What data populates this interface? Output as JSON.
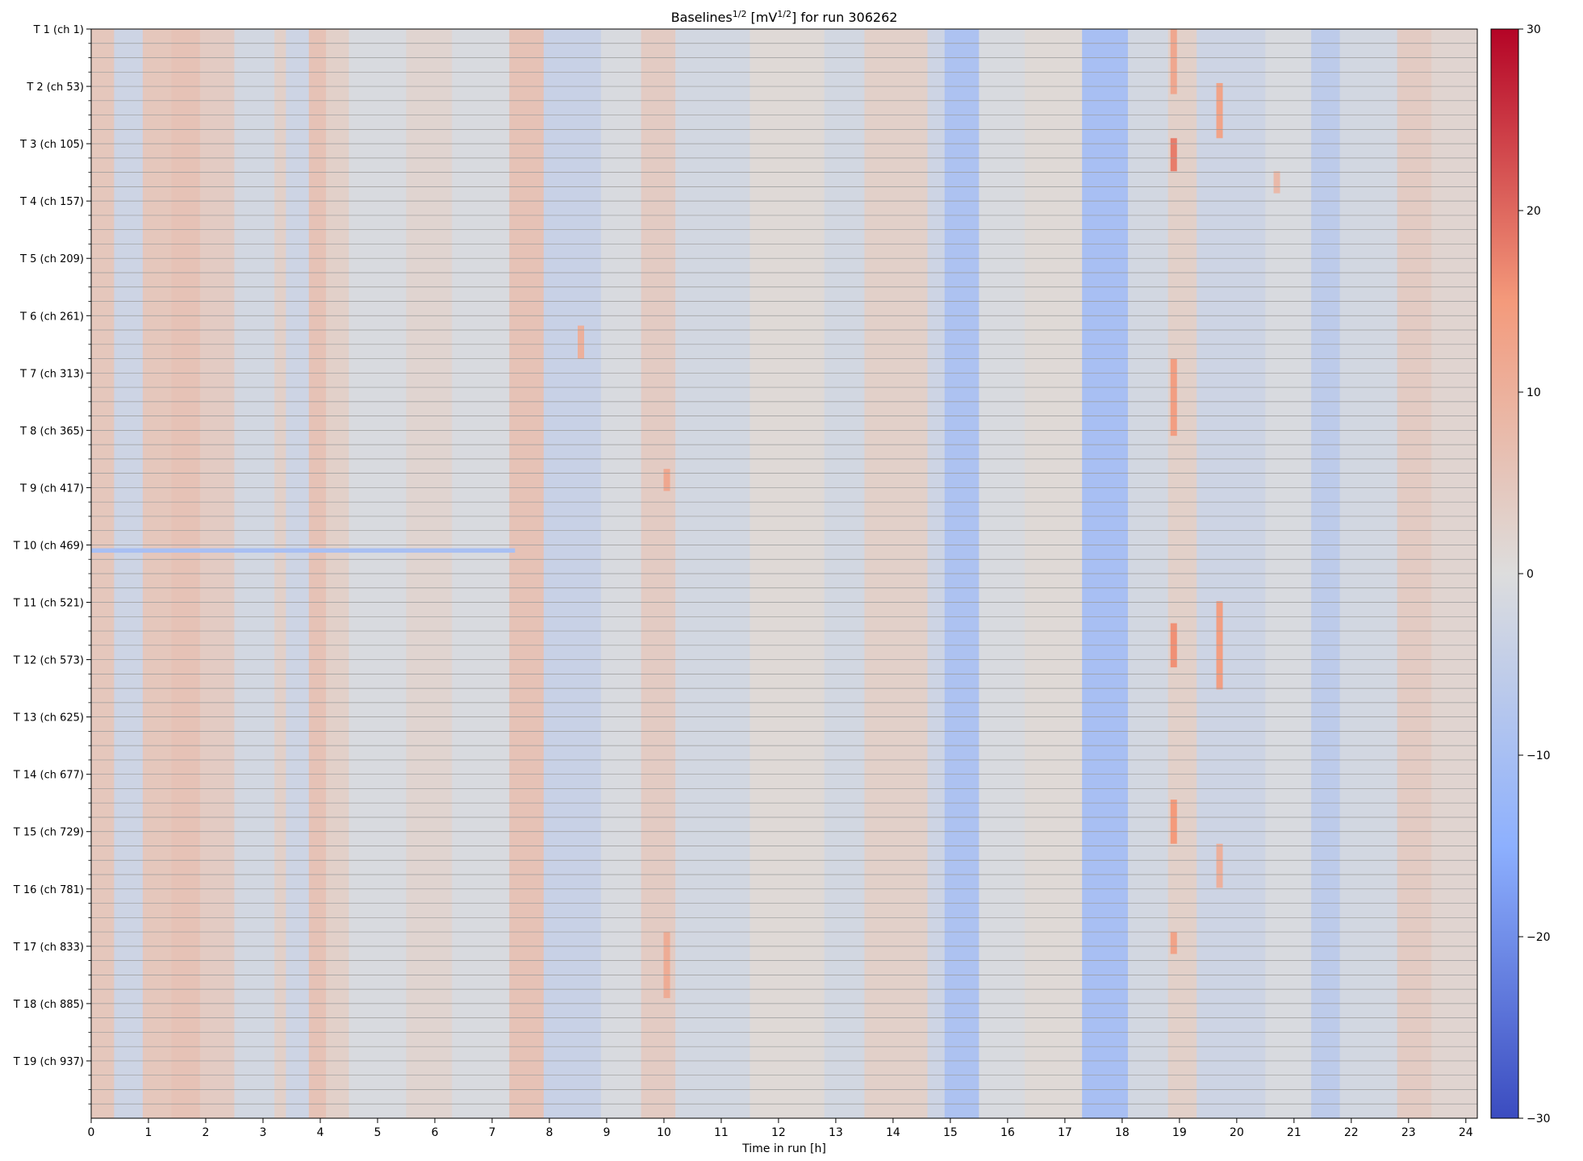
{
  "chart_data": {
    "type": "heatmap",
    "title": "Baselines¹ᐟ² [mV¹ᐟ²] for run 306262",
    "title_parts": {
      "pre": "Baselines",
      "sup1": "1/2",
      "mid": " [mV",
      "sup2": "1/2",
      "post": "] for run 306262"
    },
    "xlabel": "Time in run [h]",
    "ylabel": "",
    "x_ticks": [
      0,
      1,
      2,
      3,
      4,
      5,
      6,
      7,
      8,
      9,
      10,
      11,
      12,
      13,
      14,
      15,
      16,
      17,
      18,
      19,
      20,
      21,
      22,
      23,
      24
    ],
    "xlim": [
      0,
      24.2
    ],
    "channels": 988,
    "channel_group_size": 52,
    "minor_ticks_per_group": 4,
    "y_tick_labels": [
      "T 1 (ch 1)",
      "T 2 (ch 53)",
      "T 3 (ch 105)",
      "T 4 (ch 157)",
      "T 5 (ch 209)",
      "T 6 (ch 261)",
      "T 7 (ch 313)",
      "T 8 (ch 365)",
      "T 9 (ch 417)",
      "T 10 (ch 469)",
      "T 11 (ch 521)",
      "T 12 (ch 573)",
      "T 13 (ch 625)",
      "T 14 (ch 677)",
      "T 15 (ch 729)",
      "T 16 (ch 781)",
      "T 17 (ch 833)",
      "T 18 (ch 885)",
      "T 19 (ch 937)"
    ],
    "colorbar": {
      "cmap": "coolwarm",
      "vmin": -30,
      "vmax": 30,
      "ticks": [
        -30,
        -20,
        -10,
        0,
        10,
        20,
        30
      ],
      "tick_labels": [
        "−30",
        "−20",
        "−10",
        "0",
        "10",
        "20",
        "30"
      ]
    },
    "time_profile": [
      {
        "t0": 0.0,
        "t1": 0.4,
        "v": 5
      },
      {
        "t0": 0.4,
        "t1": 0.9,
        "v": -3
      },
      {
        "t0": 0.9,
        "t1": 1.4,
        "v": 5
      },
      {
        "t0": 1.4,
        "t1": 1.9,
        "v": 6
      },
      {
        "t0": 1.9,
        "t1": 2.5,
        "v": 4
      },
      {
        "t0": 2.5,
        "t1": 3.2,
        "v": -2
      },
      {
        "t0": 3.2,
        "t1": 3.4,
        "v": 3
      },
      {
        "t0": 3.4,
        "t1": 3.8,
        "v": -3
      },
      {
        "t0": 3.8,
        "t1": 4.1,
        "v": 6
      },
      {
        "t0": 4.1,
        "t1": 4.5,
        "v": 3
      },
      {
        "t0": 4.5,
        "t1": 5.5,
        "v": -1
      },
      {
        "t0": 5.5,
        "t1": 6.3,
        "v": 2
      },
      {
        "t0": 6.3,
        "t1": 7.3,
        "v": -1
      },
      {
        "t0": 7.3,
        "t1": 7.9,
        "v": 6
      },
      {
        "t0": 7.9,
        "t1": 8.9,
        "v": -4
      },
      {
        "t0": 8.9,
        "t1": 9.6,
        "v": -1
      },
      {
        "t0": 9.6,
        "t1": 10.2,
        "v": 4
      },
      {
        "t0": 10.2,
        "t1": 11.5,
        "v": -2
      },
      {
        "t0": 11.5,
        "t1": 12.8,
        "v": 1
      },
      {
        "t0": 12.8,
        "t1": 13.5,
        "v": -2
      },
      {
        "t0": 13.5,
        "t1": 14.6,
        "v": 3
      },
      {
        "t0": 14.6,
        "t1": 14.9,
        "v": -3
      },
      {
        "t0": 14.9,
        "t1": 15.5,
        "v": -9
      },
      {
        "t0": 15.5,
        "t1": 16.3,
        "v": -1
      },
      {
        "t0": 16.3,
        "t1": 17.3,
        "v": 1
      },
      {
        "t0": 17.3,
        "t1": 18.1,
        "v": -10
      },
      {
        "t0": 18.1,
        "t1": 18.8,
        "v": -2
      },
      {
        "t0": 18.8,
        "t1": 19.3,
        "v": 3
      },
      {
        "t0": 19.3,
        "t1": 20.5,
        "v": -3
      },
      {
        "t0": 20.5,
        "t1": 21.3,
        "v": -1
      },
      {
        "t0": 21.3,
        "t1": 21.8,
        "v": -6
      },
      {
        "t0": 21.8,
        "t1": 22.8,
        "v": -2
      },
      {
        "t0": 22.8,
        "t1": 23.4,
        "v": 4
      },
      {
        "t0": 23.4,
        "t1": 24.2,
        "v": 2
      }
    ],
    "hot_spots": [
      {
        "t": 18.9,
        "ch0": 1,
        "ch1": 60,
        "v": 12
      },
      {
        "t": 18.9,
        "ch0": 100,
        "ch1": 130,
        "v": 18
      },
      {
        "t": 18.9,
        "ch0": 300,
        "ch1": 370,
        "v": 14
      },
      {
        "t": 18.9,
        "ch0": 540,
        "ch1": 580,
        "v": 16
      },
      {
        "t": 18.9,
        "ch0": 700,
        "ch1": 740,
        "v": 15
      },
      {
        "t": 18.9,
        "ch0": 820,
        "ch1": 840,
        "v": 13
      },
      {
        "t": 19.7,
        "ch0": 50,
        "ch1": 100,
        "v": 13
      },
      {
        "t": 19.7,
        "ch0": 520,
        "ch1": 600,
        "v": 14
      },
      {
        "t": 19.7,
        "ch0": 740,
        "ch1": 780,
        "v": 10
      },
      {
        "t": 10.05,
        "ch0": 400,
        "ch1": 420,
        "v": 12
      },
      {
        "t": 10.05,
        "ch0": 820,
        "ch1": 880,
        "v": 11
      },
      {
        "t": 8.55,
        "ch0": 270,
        "ch1": 300,
        "v": 10
      },
      {
        "t": 20.7,
        "ch0": 130,
        "ch1": 150,
        "v": 8
      }
    ],
    "cold_band": {
      "t0": 0.0,
      "t1": 7.4,
      "ch0": 472,
      "ch1": 476,
      "v": -10
    }
  }
}
